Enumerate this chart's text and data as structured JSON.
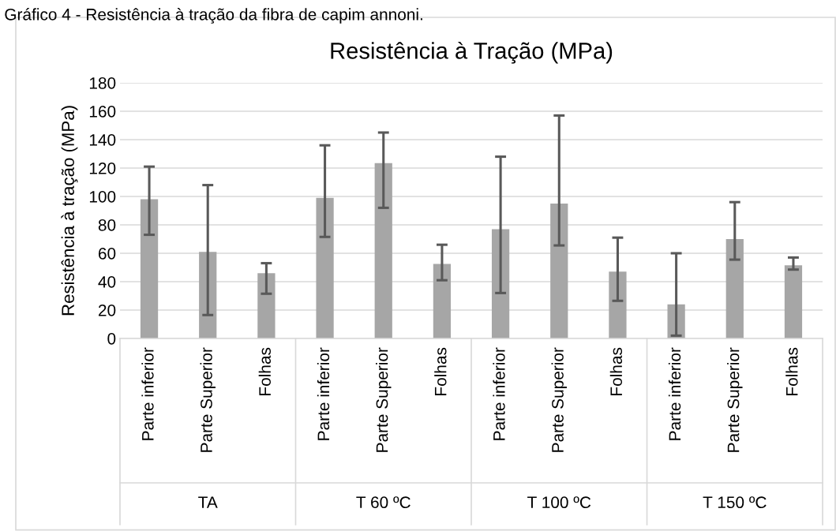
{
  "chart_data": {
    "type": "bar",
    "title": "Resistência à Tração (MPa)",
    "ylabel": "Resistência à tração (MPa)",
    "categories": [
      "Parte inferior",
      "Parte Superior",
      "Folhas",
      "Parte inferior",
      "Parte Superior",
      "Folhas",
      "Parte inferior",
      "Parte Superior",
      "Folhas",
      "Parte inferior",
      "Parte Superior",
      "Folhas"
    ],
    "values": [
      98,
      61,
      46,
      99,
      123.5,
      52.5,
      77,
      95,
      47,
      24,
      70,
      51.5
    ],
    "errors": [
      [
        73,
        121
      ],
      [
        16.5,
        108
      ],
      [
        31.5,
        53
      ],
      [
        71.5,
        136
      ],
      [
        92,
        145
      ],
      [
        41,
        66
      ],
      [
        32,
        128
      ],
      [
        65.5,
        157
      ],
      [
        26.5,
        71
      ],
      [
        2,
        60
      ],
      [
        55.5,
        96
      ],
      [
        48.5,
        57
      ]
    ],
    "color": "#a6a6a6",
    "annotations": [
      "Gráfico 4 - Resistência à tração da fibra de capim annoni.",
      "TA",
      "T 60 ºC",
      "T 100 ºC",
      "T 150 ºC"
    ],
    "ylim": [
      0,
      180
    ],
    "yticks": [
      0,
      20,
      40,
      60,
      80,
      100,
      120,
      140,
      160,
      180
    ],
    "grid": "y",
    "legend": false
  }
}
